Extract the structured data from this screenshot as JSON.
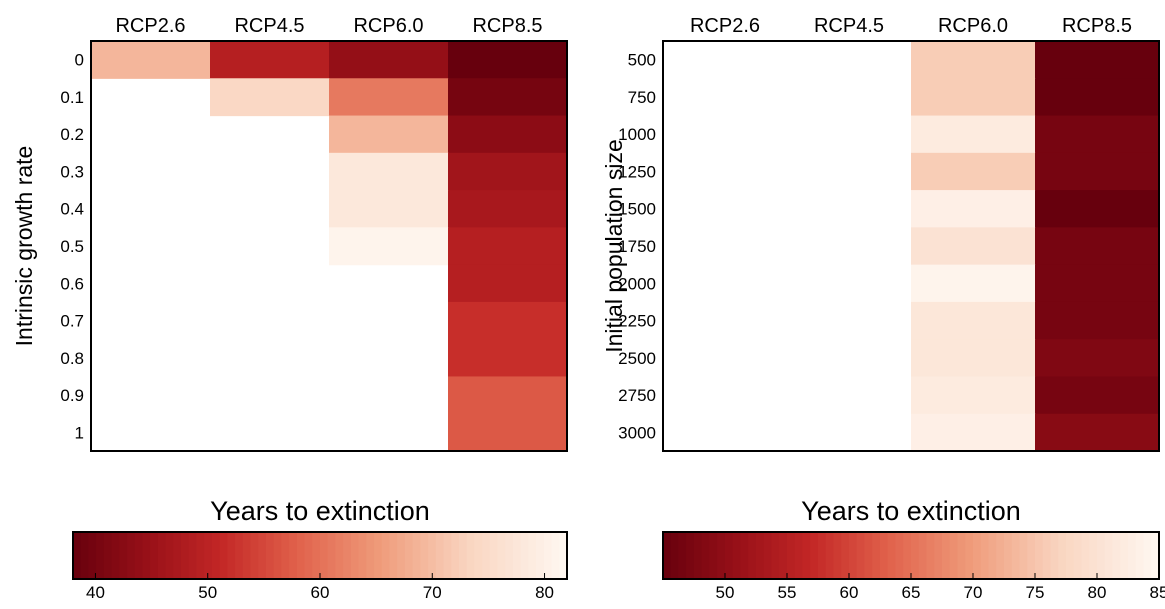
{
  "chart_data": [
    {
      "type": "heatmap",
      "ylabel": "Intrinsic growth rate",
      "columns": [
        "RCP2.6",
        "RCP4.5",
        "RCP6.0",
        "RCP8.5"
      ],
      "rows": [
        "0",
        "0.1",
        "0.2",
        "0.3",
        "0.4",
        "0.5",
        "0.6",
        "0.7",
        "0.8",
        "0.9",
        "1"
      ],
      "values": [
        [
          69,
          49,
          44,
          38
        ],
        [
          null,
          74,
          61,
          40
        ],
        [
          null,
          null,
          69,
          43
        ],
        [
          null,
          null,
          78,
          46
        ],
        [
          null,
          null,
          78,
          47
        ],
        [
          null,
          null,
          81,
          49
        ],
        [
          null,
          null,
          null,
          49
        ],
        [
          null,
          null,
          null,
          52
        ],
        [
          null,
          null,
          null,
          52
        ],
        [
          null,
          null,
          null,
          57
        ],
        [
          null,
          null,
          null,
          57
        ]
      ],
      "colorbar": {
        "title": "Years to extinction",
        "range": [
          38,
          82
        ],
        "ticks": [
          40,
          50,
          60,
          70,
          80
        ]
      }
    },
    {
      "type": "heatmap",
      "ylabel": "Initial population size",
      "columns": [
        "RCP2.6",
        "RCP4.5",
        "RCP6.0",
        "RCP8.5"
      ],
      "rows": [
        "500",
        "750",
        "1000",
        "1250",
        "1500",
        "1750",
        "2000",
        "2250",
        "2500",
        "2750",
        "3000"
      ],
      "values": [
        [
          null,
          null,
          76,
          45
        ],
        [
          null,
          null,
          76,
          45
        ],
        [
          null,
          null,
          82,
          47
        ],
        [
          null,
          null,
          76,
          47
        ],
        [
          null,
          null,
          83,
          45
        ],
        [
          null,
          null,
          80,
          47
        ],
        [
          null,
          null,
          84,
          47
        ],
        [
          null,
          null,
          81,
          47
        ],
        [
          null,
          null,
          81,
          48
        ],
        [
          null,
          null,
          82,
          47
        ],
        [
          null,
          null,
          83,
          49
        ]
      ],
      "colorbar": {
        "title": "Years to extinction",
        "range": [
          45,
          85
        ],
        "ticks": [
          50,
          55,
          60,
          65,
          70,
          75,
          80,
          85
        ]
      }
    }
  ]
}
